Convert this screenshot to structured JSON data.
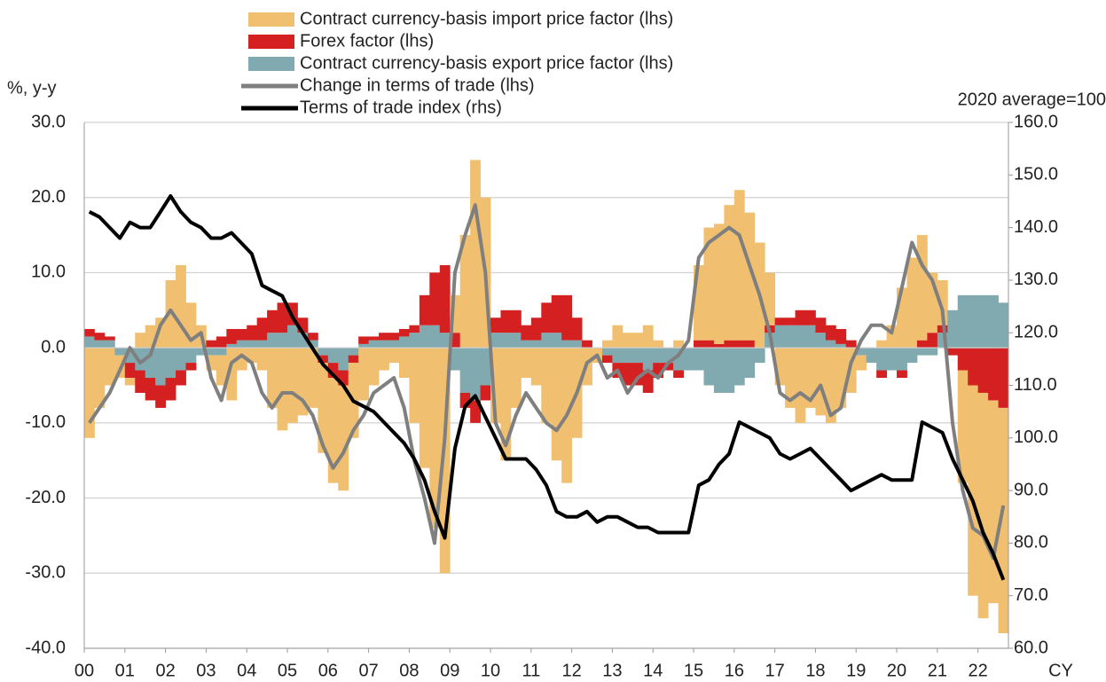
{
  "chart_data": {
    "type": "bar",
    "y_label": "%, y-y",
    "y2_label": "2020 average=100",
    "x_label": "CY",
    "xlim": [
      2000,
      2022.75
    ],
    "xticks": [
      {
        "value": 2000,
        "label": "00"
      },
      {
        "value": 2001,
        "label": "01"
      },
      {
        "value": 2002,
        "label": "02"
      },
      {
        "value": 2003,
        "label": "03"
      },
      {
        "value": 2004,
        "label": "04"
      },
      {
        "value": 2005,
        "label": "05"
      },
      {
        "value": 2006,
        "label": "06"
      },
      {
        "value": 2007,
        "label": "07"
      },
      {
        "value": 2008,
        "label": "08"
      },
      {
        "value": 2009,
        "label": "09"
      },
      {
        "value": 2010,
        "label": "10"
      },
      {
        "value": 2011,
        "label": "11"
      },
      {
        "value": 2012,
        "label": "12"
      },
      {
        "value": 2013,
        "label": "13"
      },
      {
        "value": 2014,
        "label": "14"
      },
      {
        "value": 2015,
        "label": "15"
      },
      {
        "value": 2016,
        "label": "16"
      },
      {
        "value": 2017,
        "label": "17"
      },
      {
        "value": 2018,
        "label": "18"
      },
      {
        "value": 2019,
        "label": "19"
      },
      {
        "value": 2020,
        "label": "20"
      },
      {
        "value": 2021,
        "label": "21"
      },
      {
        "value": 2022,
        "label": "22"
      }
    ],
    "ylim": [
      -40,
      30
    ],
    "yticks": [
      {
        "value": -40,
        "label": "-40.0"
      },
      {
        "value": -30,
        "label": "-30.0"
      },
      {
        "value": -20,
        "label": "-20.0"
      },
      {
        "value": -10,
        "label": "-10.0"
      },
      {
        "value": 0,
        "label": "0.0"
      },
      {
        "value": 10,
        "label": "10.0"
      },
      {
        "value": 20,
        "label": "20.0"
      },
      {
        "value": 30,
        "label": "30.0"
      }
    ],
    "y2lim": [
      60,
      160
    ],
    "y2ticks": [
      {
        "value": 60,
        "label": "60.0"
      },
      {
        "value": 70,
        "label": "70.0"
      },
      {
        "value": 80,
        "label": "80.0"
      },
      {
        "value": 90,
        "label": "90.0"
      },
      {
        "value": 100,
        "label": "100.0"
      },
      {
        "value": 110,
        "label": "110.0"
      },
      {
        "value": 120,
        "label": "120.0"
      },
      {
        "value": 130,
        "label": "130.0"
      },
      {
        "value": 140,
        "label": "140.0"
      },
      {
        "value": 150,
        "label": "150.0"
      },
      {
        "value": 160,
        "label": "160.0"
      }
    ],
    "grid": true,
    "x": [
      2000.125,
      2000.375,
      2000.625,
      2000.875,
      2001.125,
      2001.375,
      2001.625,
      2001.875,
      2002.125,
      2002.375,
      2002.625,
      2002.875,
      2003.125,
      2003.375,
      2003.625,
      2003.875,
      2004.125,
      2004.375,
      2004.625,
      2004.875,
      2005.125,
      2005.375,
      2005.625,
      2005.875,
      2006.125,
      2006.375,
      2006.625,
      2006.875,
      2007.125,
      2007.375,
      2007.625,
      2007.875,
      2008.125,
      2008.375,
      2008.625,
      2008.875,
      2009.125,
      2009.375,
      2009.625,
      2009.875,
      2010.125,
      2010.375,
      2010.625,
      2010.875,
      2011.125,
      2011.375,
      2011.625,
      2011.875,
      2012.125,
      2012.375,
      2012.625,
      2012.875,
      2013.125,
      2013.375,
      2013.625,
      2013.875,
      2014.125,
      2014.375,
      2014.625,
      2014.875,
      2015.125,
      2015.375,
      2015.625,
      2015.875,
      2016.125,
      2016.375,
      2016.625,
      2016.875,
      2017.125,
      2017.375,
      2017.625,
      2017.875,
      2018.125,
      2018.375,
      2018.625,
      2018.875,
      2019.125,
      2019.375,
      2019.625,
      2019.875,
      2020.125,
      2020.375,
      2020.625,
      2020.875,
      2021.125,
      2021.375,
      2021.625,
      2021.875,
      2022.125,
      2022.375,
      2022.625
    ],
    "series": [
      {
        "name": "Contract currency-basis import price factor (lhs)",
        "type": "bar",
        "color": "#f0c070",
        "values": [
          -12,
          -8,
          -5,
          -3,
          -1,
          2,
          3,
          4,
          9,
          11,
          6,
          3,
          -2,
          -4,
          -7,
          -3,
          -2,
          -3,
          -8,
          -11,
          -10,
          -9,
          -8,
          -12,
          -14,
          -14,
          -10,
          -7,
          -5,
          -3,
          -2,
          -4,
          -10,
          -16,
          -24,
          -30,
          5,
          15,
          25,
          20,
          -10,
          -15,
          -8,
          -4,
          -5,
          -10,
          -15,
          -18,
          -12,
          -5,
          -2,
          1,
          3,
          2,
          2,
          3,
          1,
          0,
          1,
          0,
          10,
          15,
          16,
          18,
          20,
          17,
          14,
          7,
          -5,
          -8,
          -10,
          -8,
          -9,
          -10,
          -8,
          -6,
          -2,
          0,
          1,
          3,
          8,
          12,
          14,
          8,
          6,
          0,
          -15,
          -28,
          -30,
          -27,
          -30
        ]
      },
      {
        "name": "Forex factor (lhs)",
        "type": "bar",
        "color": "#d42020",
        "values": [
          1,
          1,
          0.5,
          0,
          -2,
          -3,
          -3,
          -3,
          -3,
          -2,
          -1,
          0,
          1,
          1.5,
          2,
          1.5,
          2,
          3,
          3,
          4,
          3,
          2,
          1,
          -1,
          -2,
          -2,
          -1,
          1,
          0.5,
          1,
          1,
          1,
          1,
          4,
          7,
          9,
          2,
          -2,
          -3,
          -2,
          2,
          3,
          3,
          2,
          3,
          4,
          5,
          6,
          3,
          1,
          0,
          -1,
          -2,
          -3,
          -3,
          -3,
          -2,
          -1,
          -1,
          0,
          1,
          1,
          0.5,
          1,
          1,
          1,
          0,
          1,
          1,
          1,
          2,
          2,
          2,
          2,
          2,
          1,
          0,
          0,
          -1,
          0,
          -1,
          0,
          1,
          2,
          1,
          -1,
          -3,
          -5,
          -6,
          -7,
          -8
        ]
      },
      {
        "name": "Contract currency-basis export price factor (lhs)",
        "type": "bar",
        "color": "#80aab0",
        "values": [
          1.5,
          1,
          1,
          -1,
          -2,
          -3,
          -4,
          -5,
          -4,
          -3,
          -2,
          -1,
          -1,
          -1,
          0.5,
          1,
          1,
          1,
          2,
          2,
          3,
          2,
          1,
          -1,
          -2,
          -3,
          -1,
          0.5,
          1,
          1,
          1,
          1.5,
          2,
          3,
          3,
          2,
          -3,
          -6,
          -7,
          -5,
          2,
          2,
          2,
          1,
          1,
          2,
          2,
          1,
          1,
          0,
          0,
          -1,
          -2,
          -2,
          -2,
          -3,
          -2,
          -2,
          -3,
          -3,
          -3,
          -5,
          -6,
          -6,
          -5,
          -4,
          -2,
          2,
          3,
          3,
          3,
          3,
          2,
          1,
          0.5,
          0,
          -1,
          -2,
          -3,
          -3,
          -3,
          -2,
          -1,
          -1,
          2,
          5,
          7,
          7,
          7,
          7,
          6
        ]
      },
      {
        "name": "Change in terms of trade (lhs)",
        "type": "line",
        "color": "#7f7f7f",
        "values": [
          -10,
          -8,
          -6,
          -3,
          0,
          -2,
          -1,
          3,
          5,
          3,
          1,
          2,
          -4,
          -7,
          -2,
          -1,
          -2,
          -6,
          -8,
          -6,
          -6,
          -7,
          -9,
          -13,
          -16,
          -14,
          -11,
          -9,
          -6,
          -5,
          -4,
          -8,
          -15,
          -20,
          -26,
          -12,
          10,
          15,
          19,
          10,
          -10,
          -13,
          -9,
          -6,
          -8,
          -10,
          -11,
          -9,
          -6,
          -2,
          -1,
          -4,
          -3,
          -6,
          -4,
          -3,
          -4,
          -2,
          -1,
          1,
          12,
          14,
          15,
          16,
          15,
          11,
          7,
          2,
          -6,
          -7,
          -6,
          -7,
          -5,
          -9,
          -8,
          -2,
          1,
          3,
          3,
          2,
          8,
          14,
          11,
          9,
          5,
          -10,
          -19,
          -24,
          -25,
          -28,
          -21
        ]
      },
      {
        "name": "Terms of trade index (rhs)",
        "type": "line",
        "axis": "y2",
        "color": "#000000",
        "values": [
          143,
          142,
          140,
          138,
          141,
          140,
          140,
          143,
          146,
          143,
          141,
          140,
          138,
          138,
          139,
          137,
          135,
          129,
          128,
          127,
          123,
          120,
          117,
          114,
          112,
          110,
          107,
          106,
          105,
          103,
          101,
          99,
          96,
          92,
          86,
          81,
          98,
          106,
          108,
          104,
          100,
          96,
          96,
          96,
          94,
          91,
          86,
          85,
          85,
          86,
          84,
          85,
          85,
          84,
          83,
          83,
          82,
          82,
          82,
          82,
          91,
          92,
          95,
          97,
          103,
          102,
          101,
          100,
          97,
          96,
          97,
          98,
          96,
          94,
          92,
          90,
          91,
          92,
          93,
          92,
          92,
          92,
          103,
          102,
          101,
          96,
          92,
          88,
          82,
          78,
          73
        ]
      }
    ]
  }
}
